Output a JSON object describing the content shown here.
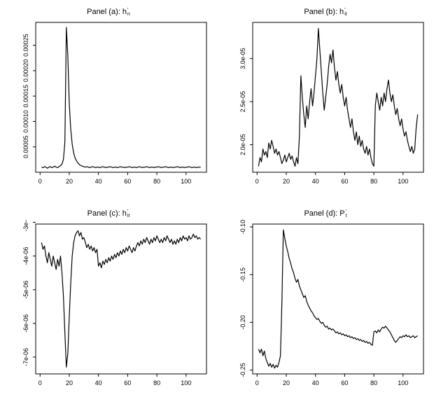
{
  "page": {
    "background": "#ffffff",
    "foreground": "#000000"
  },
  "chart_data": [
    {
      "id": "panel-a",
      "type": "line",
      "title": {
        "base": "Panel (a): h",
        "sup": "′",
        "sub": "n"
      },
      "xlabel": "",
      "ylabel": "",
      "grid": false,
      "legend": "none",
      "line_color": "#000000",
      "x_start": 1,
      "xlim": [
        -3,
        114
      ],
      "ylim": [
        0,
        0.000295
      ],
      "xticks": [
        0,
        20,
        40,
        60,
        80,
        100
      ],
      "xtick_labels": [
        "0",
        "20",
        "40",
        "60",
        "80",
        "100"
      ],
      "yticks": [
        5e-05,
        0.0001,
        0.00015,
        0.0002,
        0.00025
      ],
      "ytick_labels": [
        "0.00005",
        "0.00010",
        "0.00015",
        "0.00020",
        "0.00025"
      ],
      "values": [
        1e-05,
        9e-06,
        1.1e-05,
        1e-05,
        8e-06,
        1e-05,
        1.1e-05,
        9e-06,
        1e-05,
        1.2e-05,
        1e-05,
        9e-06,
        1.1e-05,
        1.3e-05,
        1.6e-05,
        2.5e-05,
        6e-05,
        0.000285,
        0.00023,
        0.000135,
        8.5e-05,
        5.5e-05,
        3.8e-05,
        2.8e-05,
        2.2e-05,
        1.8e-05,
        1.5e-05,
        1.3e-05,
        1.2e-05,
        1.1e-05,
        1e-05,
        1.1e-05,
        1e-05,
        9e-06,
        1e-05,
        1.1e-05,
        1e-05,
        9e-06,
        1e-05,
        1e-05,
        9e-06,
        1e-05,
        1.1e-05,
        1e-05,
        9e-06,
        1e-05,
        1e-05,
        1.1e-05,
        1e-05,
        9e-06,
        1e-05,
        1e-05,
        9e-06,
        1e-05,
        1.1e-05,
        1e-05,
        1e-05,
        9e-06,
        1e-05,
        1e-05,
        1.1e-05,
        1e-05,
        9e-06,
        1e-05,
        1e-05,
        9e-06,
        1e-05,
        1.1e-05,
        1e-05,
        9e-06,
        1e-05,
        1e-05,
        1.1e-05,
        1e-05,
        9e-06,
        1e-05,
        1e-05,
        9e-06,
        1e-05,
        1e-05,
        1.1e-05,
        1e-05,
        9e-06,
        1e-05,
        1e-05,
        1.1e-05,
        1e-05,
        9e-06,
        1e-05,
        1e-05,
        9e-06,
        1e-05,
        1e-05,
        1.1e-05,
        1e-05,
        9e-06,
        1e-05,
        1e-05,
        9e-06,
        1e-05,
        1e-05,
        1.1e-05,
        1e-05,
        9e-06,
        1e-05,
        1e-05,
        9e-06,
        1e-05,
        1e-05,
        1e-05
      ]
    },
    {
      "id": "panel-b",
      "type": "line",
      "title": {
        "base": "Panel (b): h",
        "sup": "′",
        "sub": "it"
      },
      "xlabel": "",
      "ylabel": "",
      "grid": false,
      "legend": "none",
      "line_color": "#000000",
      "x_start": 1,
      "xlim": [
        -3,
        114
      ],
      "ylim": [
        1.68e-05,
        3.42e-05
      ],
      "xticks": [
        0,
        20,
        40,
        60,
        80,
        100
      ],
      "xtick_labels": [
        "0",
        "20",
        "40",
        "60",
        "80",
        "100"
      ],
      "yticks": [
        2e-05,
        2.5e-05,
        3e-05
      ],
      "ytick_labels": [
        "2.0e-05",
        "2.5e-05",
        "3.0e-05"
      ],
      "values": [
        1.75e-05,
        1.85e-05,
        1.8e-05,
        1.95e-05,
        1.88e-05,
        1.92e-05,
        1.85e-05,
        2.02e-05,
        1.95e-05,
        2.05e-05,
        1.98e-05,
        1.9e-05,
        1.95e-05,
        1.88e-05,
        1.92e-05,
        1.85e-05,
        1.78e-05,
        1.82e-05,
        1.88e-05,
        1.8e-05,
        1.85e-05,
        1.9e-05,
        1.83e-05,
        1.87e-05,
        1.8e-05,
        1.75e-05,
        1.85e-05,
        1.78e-05,
        2.1e-05,
        2.8e-05,
        2.55e-05,
        2.35e-05,
        2.2e-05,
        2.45e-05,
        2.3e-05,
        2.5e-05,
        2.65e-05,
        2.45e-05,
        2.6e-05,
        2.8e-05,
        3e-05,
        3.35e-05,
        3.1e-05,
        2.85e-05,
        2.6e-05,
        2.4e-05,
        2.55e-05,
        2.7e-05,
        2.9e-05,
        3.05e-05,
        2.95e-05,
        3.1e-05,
        2.9e-05,
        2.75e-05,
        2.85e-05,
        2.7e-05,
        2.6e-05,
        2.7e-05,
        2.55e-05,
        2.45e-05,
        2.55e-05,
        2.4e-05,
        2.3e-05,
        2.2e-05,
        2.3e-05,
        2.15e-05,
        2.05e-05,
        2.15e-05,
        2e-05,
        2.1e-05,
        1.98e-05,
        2.05e-05,
        1.95e-05,
        1.9e-05,
        1.98e-05,
        1.88e-05,
        1.95e-05,
        1.85e-05,
        1.78e-05,
        1.75e-05,
        2.45e-05,
        2.6e-05,
        2.5e-05,
        2.4e-05,
        2.55e-05,
        2.45e-05,
        2.6e-05,
        2.5e-05,
        2.65e-05,
        2.75e-05,
        2.6e-05,
        2.5e-05,
        2.58e-05,
        2.45e-05,
        2.35e-05,
        2.42e-05,
        2.3e-05,
        2.22e-05,
        2.3e-05,
        2.18e-05,
        2.1e-05,
        2.15e-05,
        2.05e-05,
        1.98e-05,
        1.92e-05,
        1.98e-05,
        1.9e-05,
        1.95e-05,
        2.2e-05,
        2.35e-05
      ]
    },
    {
      "id": "panel-c",
      "type": "line",
      "title": {
        "base": "Panel (c): h",
        "sup": "′",
        "sub": "it"
      },
      "xlabel": "",
      "ylabel": "",
      "grid": false,
      "legend": "none",
      "line_color": "#000000",
      "x_start": 1,
      "xlim": [
        -3,
        114
      ],
      "ylim": [
        -7.5e-06,
        -3.05e-06
      ],
      "xticks": [
        0,
        20,
        40,
        60,
        80,
        100
      ],
      "xtick_labels": [
        "0",
        "20",
        "40",
        "60",
        "80",
        "100"
      ],
      "yticks": [
        -7e-06,
        -6e-06,
        -5e-06,
        -4e-06,
        -3e-06
      ],
      "ytick_labels": [
        "-7e-06",
        "-6e-06",
        "-5e-06",
        "-4e-06",
        "-3e-06"
      ],
      "values": [
        -3.6e-06,
        -3.8e-06,
        -3.7e-06,
        -4e-06,
        -4.2e-06,
        -3.9e-06,
        -4.1e-06,
        -4.3e-06,
        -4e-06,
        -4.2e-06,
        -4.4e-06,
        -4.1e-06,
        -4.3e-06,
        -4e-06,
        -4.5e-06,
        -5.2e-06,
        -6.3e-06,
        -7.3e-06,
        -6.9e-06,
        -5.8e-06,
        -4.8e-06,
        -4e-06,
        -3.6e-06,
        -3.4e-06,
        -3.3e-06,
        -3.25e-06,
        -3.4e-06,
        -3.3e-06,
        -3.5e-06,
        -3.45e-06,
        -3.6e-06,
        -3.75e-06,
        -3.65e-06,
        -3.8e-06,
        -3.7e-06,
        -3.85e-06,
        -3.75e-06,
        -3.9e-06,
        -3.8e-06,
        -4.3e-06,
        -4.2e-06,
        -4.35e-06,
        -4.15e-06,
        -4.25e-06,
        -4.1e-06,
        -4.2e-06,
        -4.05e-06,
        -4.15e-06,
        -4e-06,
        -4.1e-06,
        -3.95e-06,
        -4.05e-06,
        -3.9e-06,
        -4e-06,
        -3.85e-06,
        -3.95e-06,
        -3.8e-06,
        -3.9e-06,
        -3.75e-06,
        -3.85e-06,
        -3.7e-06,
        -3.8e-06,
        -3.9e-06,
        -3.75e-06,
        -3.85e-06,
        -3.7e-06,
        -3.6e-06,
        -3.7e-06,
        -3.55e-06,
        -3.65e-06,
        -3.5e-06,
        -3.6e-06,
        -3.45e-06,
        -3.55e-06,
        -3.65e-06,
        -3.5e-06,
        -3.6e-06,
        -3.45e-06,
        -3.55e-06,
        -3.4e-06,
        -3.5e-06,
        -3.6e-06,
        -3.5e-06,
        -3.6e-06,
        -3.45e-06,
        -3.55e-06,
        -3.4e-06,
        -3.5e-06,
        -3.6e-06,
        -3.5e-06,
        -3.65e-06,
        -3.55e-06,
        -3.65e-06,
        -3.5e-06,
        -3.6e-06,
        -3.45e-06,
        -3.55e-06,
        -3.4e-06,
        -3.5e-06,
        -3.45e-06,
        -3.55e-06,
        -3.4e-06,
        -3.5e-06,
        -3.45e-06,
        -3.35e-06,
        -3.45e-06,
        -3.4e-06,
        -3.5e-06,
        -3.45e-06,
        -3.5e-06
      ]
    },
    {
      "id": "panel-d",
      "type": "line",
      "title": {
        "base": "Panel (d): P",
        "sup": "′",
        "sub": "t"
      },
      "xlabel": "",
      "ylabel": "",
      "grid": false,
      "legend": "none",
      "line_color": "#000000",
      "x_start": 1,
      "xlim": [
        -3,
        114
      ],
      "ylim": [
        -0.254,
        -0.097
      ],
      "xticks": [
        0,
        20,
        40,
        60,
        80,
        100
      ],
      "xtick_labels": [
        "0",
        "20",
        "40",
        "60",
        "80",
        "100"
      ],
      "yticks": [
        -0.25,
        -0.2,
        -0.15,
        -0.1
      ],
      "ytick_labels": [
        "-0.25",
        "-0.20",
        "-0.15",
        "-0.10"
      ],
      "values": [
        -0.228,
        -0.232,
        -0.228,
        -0.235,
        -0.23,
        -0.238,
        -0.242,
        -0.246,
        -0.243,
        -0.247,
        -0.244,
        -0.248,
        -0.245,
        -0.247,
        -0.242,
        -0.235,
        -0.18,
        -0.103,
        -0.112,
        -0.12,
        -0.126,
        -0.133,
        -0.138,
        -0.144,
        -0.148,
        -0.154,
        -0.158,
        -0.155,
        -0.162,
        -0.166,
        -0.17,
        -0.174,
        -0.172,
        -0.178,
        -0.182,
        -0.185,
        -0.188,
        -0.19,
        -0.193,
        -0.195,
        -0.197,
        -0.196,
        -0.199,
        -0.201,
        -0.2,
        -0.203,
        -0.205,
        -0.204,
        -0.207,
        -0.206,
        -0.208,
        -0.207,
        -0.209,
        -0.211,
        -0.21,
        -0.212,
        -0.211,
        -0.213,
        -0.212,
        -0.214,
        -0.213,
        -0.215,
        -0.214,
        -0.216,
        -0.215,
        -0.217,
        -0.216,
        -0.218,
        -0.217,
        -0.219,
        -0.218,
        -0.22,
        -0.219,
        -0.221,
        -0.22,
        -0.222,
        -0.221,
        -0.223,
        -0.224,
        -0.21,
        -0.209,
        -0.211,
        -0.208,
        -0.21,
        -0.207,
        -0.205,
        -0.206,
        -0.204,
        -0.206,
        -0.208,
        -0.21,
        -0.213,
        -0.216,
        -0.219,
        -0.221,
        -0.219,
        -0.217,
        -0.215,
        -0.216,
        -0.214,
        -0.215,
        -0.213,
        -0.215,
        -0.214,
        -0.216,
        -0.215,
        -0.214,
        -0.216,
        -0.215,
        -0.214
      ]
    }
  ]
}
